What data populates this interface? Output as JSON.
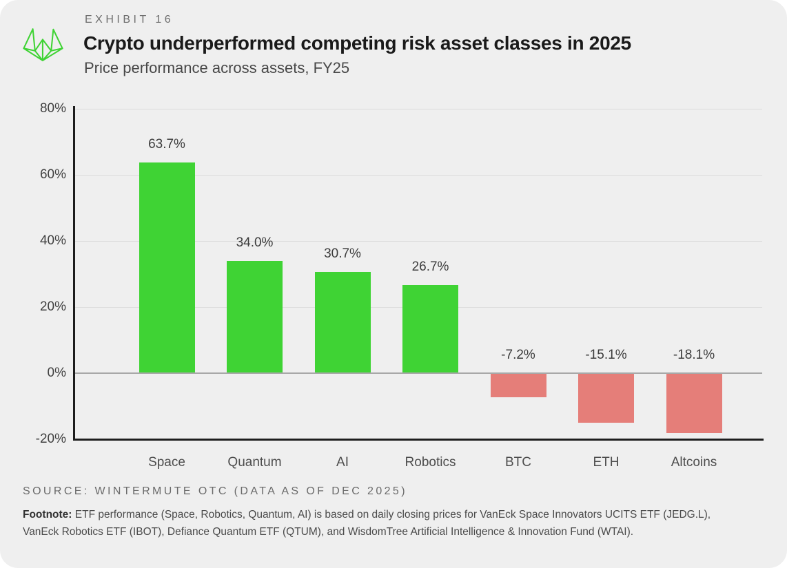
{
  "header": {
    "exhibit_label": "EXHIBIT 16",
    "title": "Crypto underperformed competing risk asset classes in 2025",
    "subtitle": "Price performance across assets, FY25",
    "logo_name": "wintermute-logo"
  },
  "chart_data": {
    "type": "bar",
    "title": "Crypto underperformed competing risk asset classes in 2025",
    "subtitle": "Price performance across assets, FY25",
    "categories": [
      "Space",
      "Quantum",
      "AI",
      "Robotics",
      "BTC",
      "ETH",
      "Altcoins"
    ],
    "values": [
      63.7,
      34.0,
      30.7,
      26.7,
      -7.2,
      -15.1,
      -18.1
    ],
    "value_labels": [
      "63.7%",
      "34.0%",
      "30.7%",
      "26.7%",
      "-7.2%",
      "-15.1%",
      "-18.1%"
    ],
    "xlabel": "",
    "ylabel": "",
    "ylim": [
      -20,
      80
    ],
    "yticks": [
      80,
      60,
      40,
      20,
      0,
      -20
    ],
    "ytick_labels": [
      "80%",
      "60%",
      "40%",
      "20%",
      "0%",
      "-20%"
    ],
    "grid": true,
    "legend_position": "none",
    "colors": {
      "positive": "#3fd334",
      "negative": "#e57e79",
      "gridline": "#dcdcdc",
      "zero_line": "#a8a8a8",
      "axis": "#1d1d1d",
      "background": "#efefef"
    }
  },
  "footer": {
    "source": "SOURCE: WINTERMUTE OTC (DATA AS OF DEC 2025)",
    "footnote_label": "Footnote:",
    "footnote_text": "ETF performance (Space, Robotics, Quantum, AI) is based on daily closing prices for VanEck Space Innovators UCITS ETF (JEDG.L), VanEck Robotics ETF (IBOT), Defiance Quantum ETF (QTUM), and WisdomTree Artificial Intelligence & Innovation Fund (WTAI)."
  },
  "brand": {
    "accent_green": "#3fd334"
  }
}
